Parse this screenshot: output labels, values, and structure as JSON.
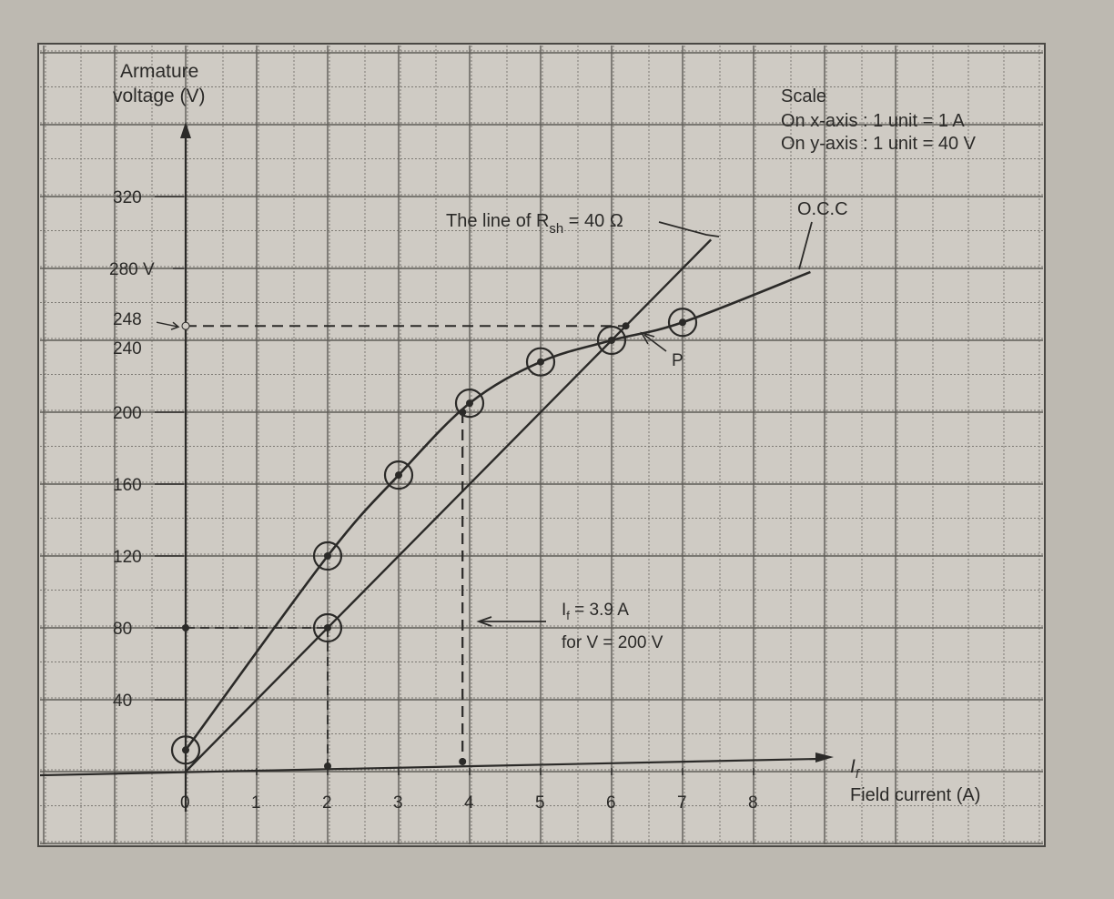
{
  "chart_data": {
    "type": "line",
    "ylabel_lines": [
      "Armature",
      "voltage (V)"
    ],
    "xlabel": "Field current (A)",
    "x_axis_symbol": "I",
    "x_axis_symbol_sub": "f",
    "xlim": [
      0,
      9
    ],
    "ylim": [
      0,
      320
    ],
    "x_ticks": [
      "0",
      "1",
      "2",
      "3",
      "4",
      "5",
      "6",
      "7",
      "8"
    ],
    "y_ticks": [
      {
        "value": 320,
        "label": "320"
      },
      {
        "value": 280,
        "label": "280 V"
      },
      {
        "value": 248,
        "label": "248"
      },
      {
        "value": 240,
        "label": "240"
      },
      {
        "value": 200,
        "label": "200"
      },
      {
        "value": 160,
        "label": "160"
      },
      {
        "value": 120,
        "label": "120"
      },
      {
        "value": 80,
        "label": "80"
      },
      {
        "value": 40,
        "label": "40"
      }
    ],
    "grid": true,
    "scale_note": {
      "title": "Scale",
      "x_line": "On x-axis : 1 unit = 1 A",
      "y_line": "On y-axis : 1 unit = 40 V"
    },
    "series": [
      {
        "name": "O.C.C",
        "x": [
          0,
          2,
          3,
          4,
          5,
          6,
          7
        ],
        "y": [
          12,
          120,
          165,
          205,
          228,
          240,
          250
        ],
        "extend_to": {
          "x": 8.8,
          "y": 278
        },
        "color": "#2b2a28"
      },
      {
        "name": "The line of R",
        "name_sub": "sh",
        "name_suffix": " = 40 Ω",
        "x": [
          0,
          7.4
        ],
        "y": [
          0,
          296
        ],
        "marked_points": [
          {
            "x": 2,
            "y": 80
          }
        ],
        "color": "#2b2a28"
      }
    ],
    "annotations": [
      {
        "id": "point-p",
        "text": "P",
        "x": 6.2,
        "y": 248
      },
      {
        "id": "if-line1",
        "text": "I",
        "sub": "f",
        "suffix": " = 3.9 A"
      },
      {
        "id": "if-line2",
        "text": "for V = 200 V"
      }
    ],
    "guides": {
      "v248_to_x": 6.2,
      "if_at_200": 3.9,
      "if_at_200_y": 200,
      "rsh_check": {
        "x": 2,
        "y": 80
      }
    }
  }
}
